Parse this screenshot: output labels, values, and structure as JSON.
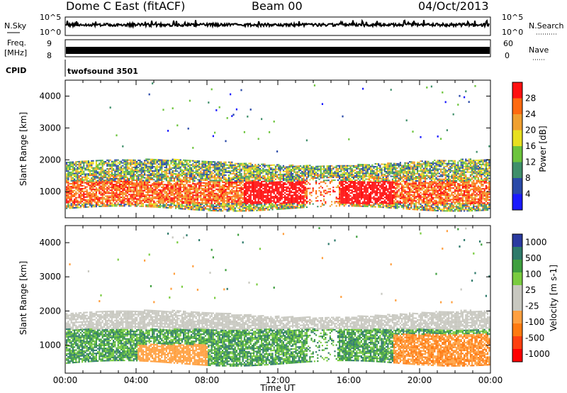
{
  "header": {
    "station": "Dome C East (fitACF)",
    "beam": "Beam 00",
    "date": "04/Oct/2013"
  },
  "strip_panels": {
    "nsky": {
      "label": "N.Sky",
      "y_top": "10^5",
      "y_bottom": "10^0",
      "right_label": "N.Search",
      "right_top": "10^5",
      "right_bottom": "10^0"
    },
    "freq": {
      "label_line1": "Freq.",
      "label_line2": "[MHz]",
      "y_top": "9",
      "y_bottom": "8",
      "right_label": "Nave",
      "right_top": "60",
      "right_bottom": "0"
    },
    "cpid": {
      "label": "CPID",
      "value": "twofsound 3501"
    }
  },
  "colors": {
    "power_scale": [
      "#1a1aff",
      "#2a4aa8",
      "#3f8f6a",
      "#6cc43c",
      "#e8e020",
      "#f0a030",
      "#ff6a10",
      "#ff1010"
    ],
    "velocity_scale": [
      "#2a3aa0",
      "#2e7a6a",
      "#3f9f3f",
      "#7acc40",
      "#c8c8c0",
      "#c8c8c0",
      "#ffa040",
      "#ff7a10",
      "#ff4010",
      "#ff0000"
    ]
  },
  "chart_data": [
    {
      "type": "heatmap",
      "name": "power-panel",
      "ylabel": "Slant Range [km]",
      "xlabel": "",
      "x_ticks": [
        "00:00",
        "04:00",
        "08:00",
        "12:00",
        "16:00",
        "20:00",
        "00:00"
      ],
      "y_ticks": [
        1000,
        2000,
        3000,
        4000
      ],
      "ylim": [
        180,
        4500
      ],
      "xlim_hours": [
        0,
        24
      ],
      "colorbar": {
        "label": "Power [dB]",
        "ticks": [
          "28",
          "24",
          "20",
          "16",
          "12",
          "8",
          "4"
        ]
      }
    },
    {
      "type": "heatmap",
      "name": "velocity-panel",
      "ylabel": "Slant Range [km]",
      "xlabel": "Time UT",
      "x_ticks": [
        "00:00",
        "04:00",
        "08:00",
        "12:00",
        "16:00",
        "20:00",
        "00:00"
      ],
      "y_ticks": [
        1000,
        2000,
        3000,
        4000
      ],
      "ylim": [
        180,
        4500
      ],
      "xlim_hours": [
        0,
        24
      ],
      "colorbar": {
        "label": "Velocity [m s-1]",
        "ticks": [
          "1000",
          "500",
          "100",
          "25",
          "-25",
          "-100",
          "-500",
          "-1000"
        ]
      }
    }
  ]
}
